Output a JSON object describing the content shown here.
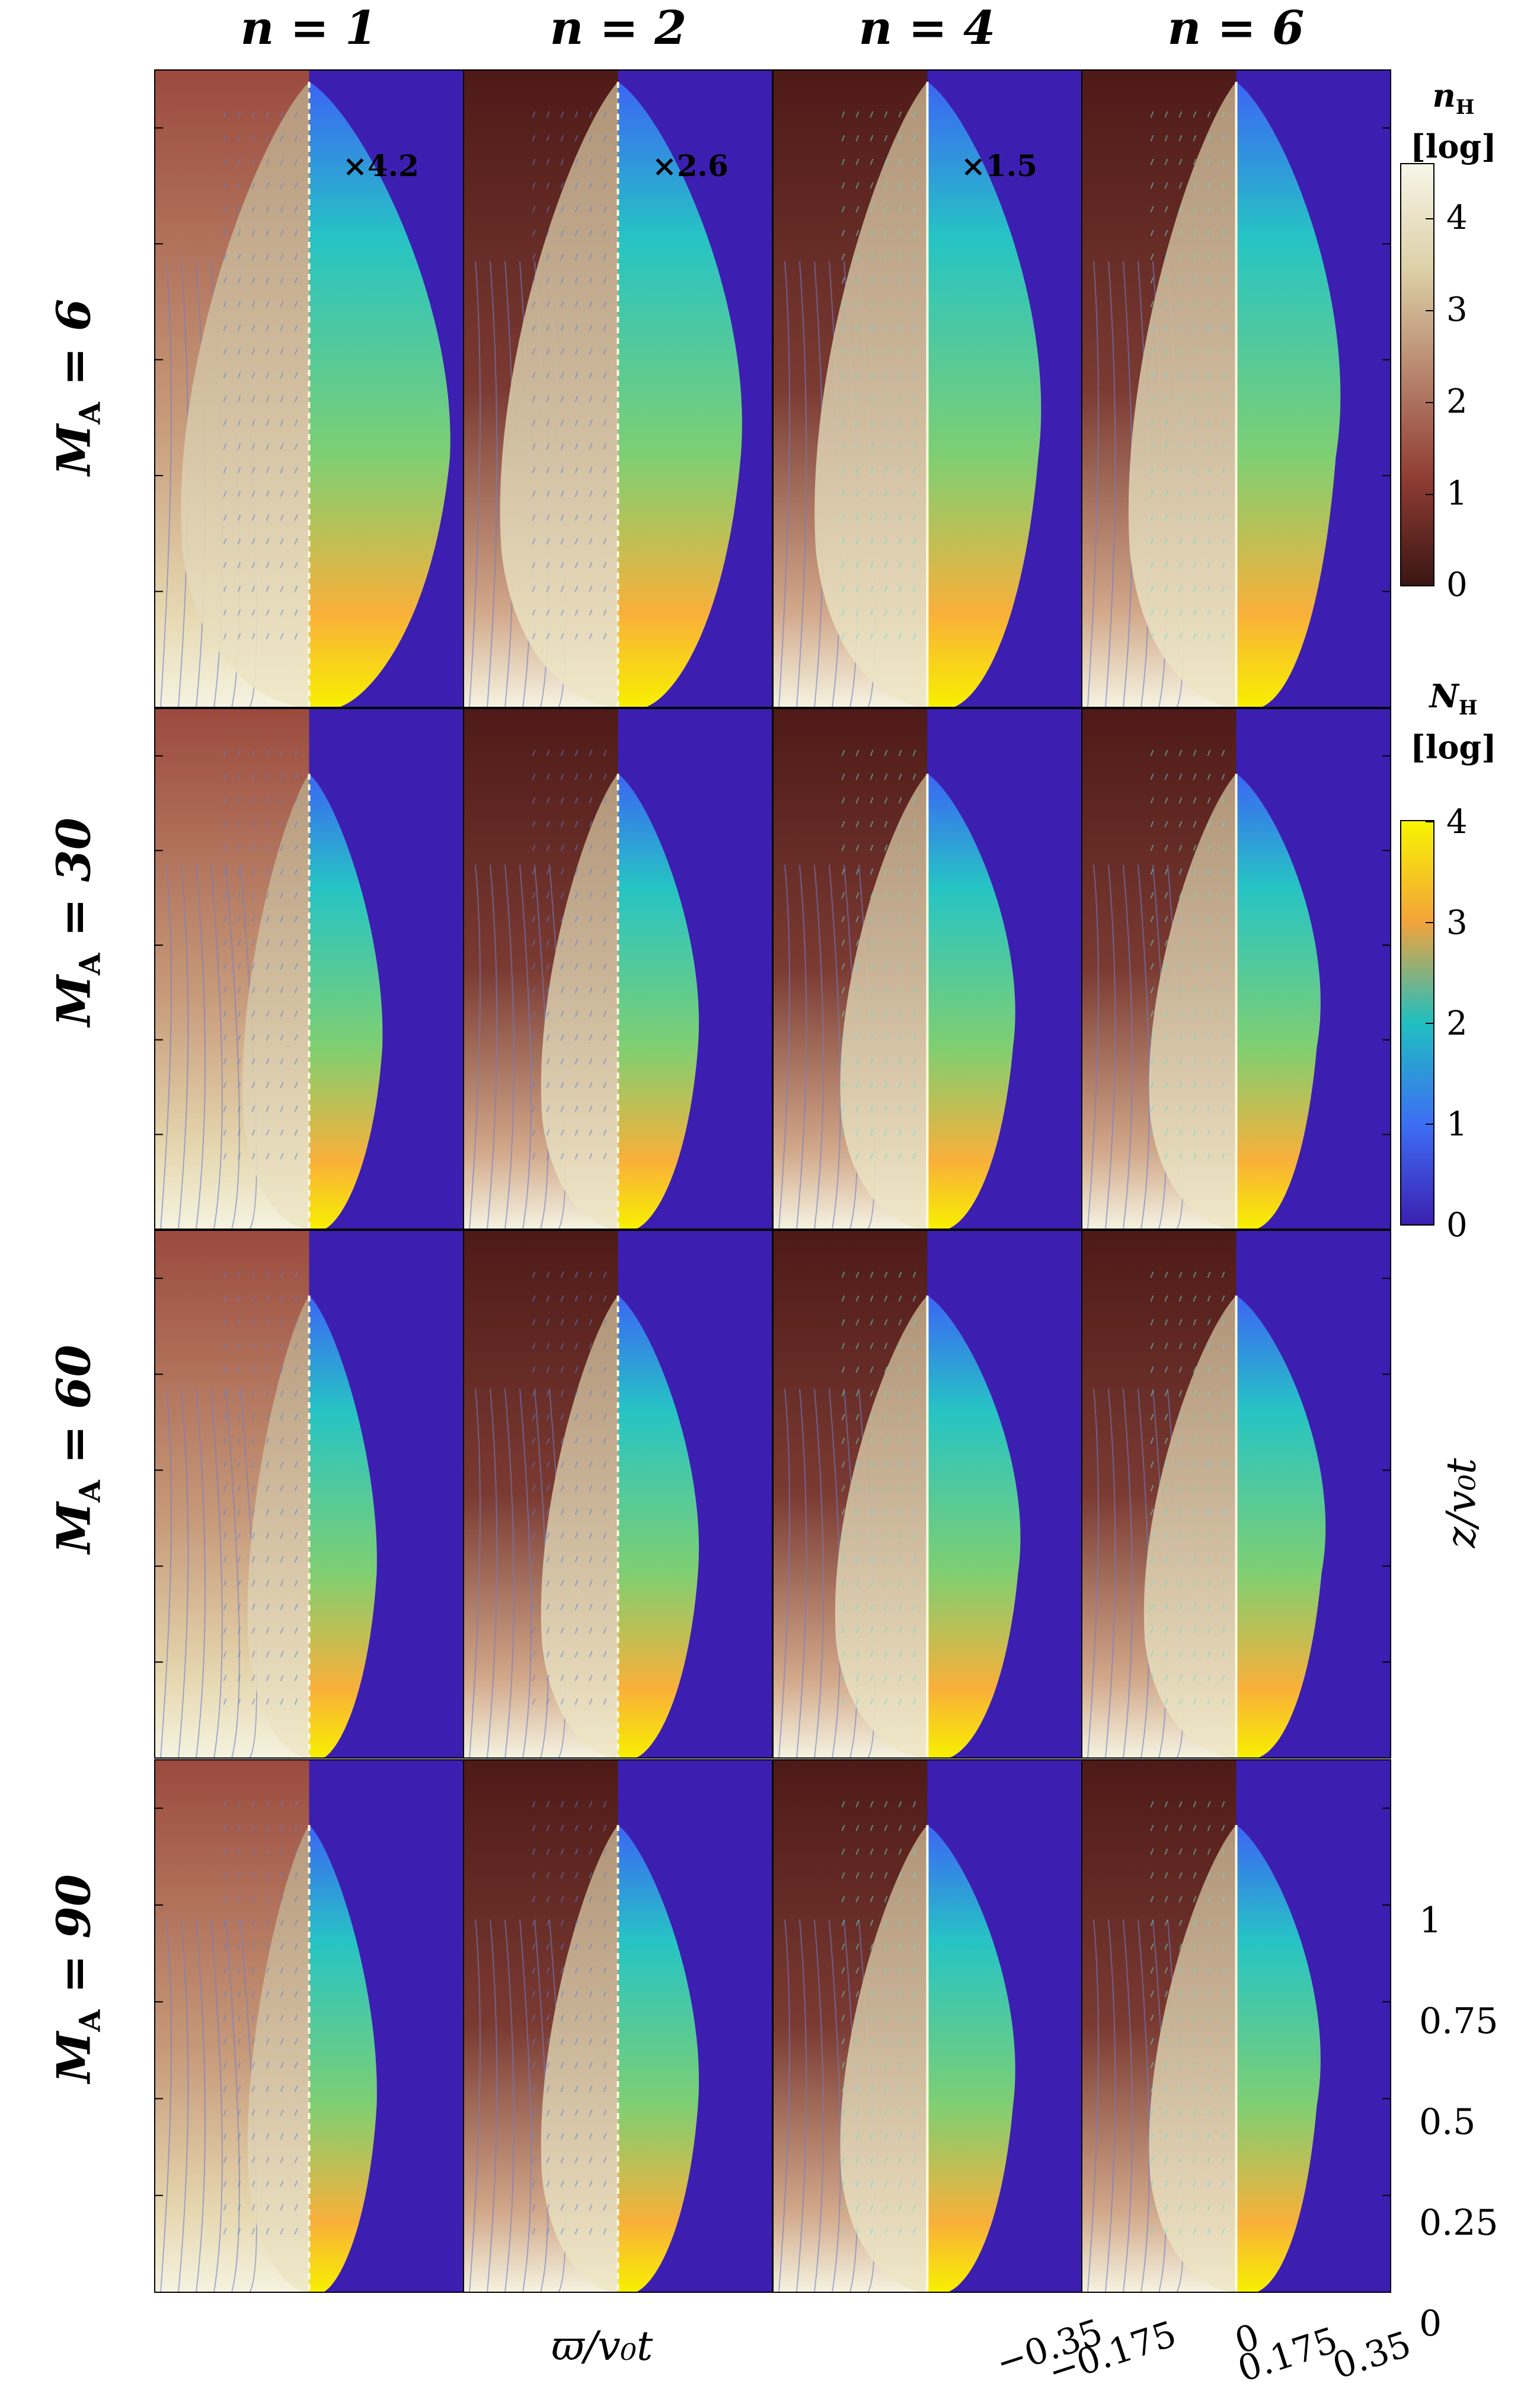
{
  "figure": {
    "columns": [
      {
        "label": "n = 1",
        "multiplier": "×4.2"
      },
      {
        "label": "n = 2",
        "multiplier": "×2.6"
      },
      {
        "label": "n = 4",
        "multiplier": "×1.5"
      },
      {
        "label": "n = 6",
        "multiplier": ""
      }
    ],
    "rows": [
      {
        "label": "M",
        "sub": "A",
        "value": " = 6"
      },
      {
        "label": "M",
        "sub": "A",
        "value": " = 30"
      },
      {
        "label": "M",
        "sub": "A",
        "value": " = 60"
      },
      {
        "label": "M",
        "sub": "A",
        "value": " = 90"
      }
    ],
    "colorbar_top": {
      "symbol": "n",
      "sub": "H",
      "unit": "[log]",
      "ticks": [
        "0",
        "1",
        "2",
        "3",
        "4"
      ],
      "range": [
        0,
        4.5
      ]
    },
    "colorbar_bottom": {
      "symbol": "N",
      "sub": "H",
      "unit": "[log]",
      "ticks": [
        "0",
        "1",
        "2",
        "3",
        "4"
      ],
      "range": [
        0,
        4
      ]
    },
    "x_axis": {
      "label": "ϖ/v₀t",
      "ticks": [
        "−0.35",
        "−0.175",
        "0",
        "0.175",
        "0.35"
      ]
    },
    "y_axis": {
      "label": "z/v₀t",
      "ticks": [
        "0",
        "0.25",
        "0.5",
        "0.75",
        "1"
      ]
    }
  },
  "chart_data": {
    "type": "heatmap",
    "title": "",
    "xlabel": "ϖ/v₀t",
    "ylabel": "z/v₀t",
    "xlim": [
      -0.35,
      0.35
    ],
    "ylim": [
      0,
      1.2
    ],
    "x_ticks": [
      -0.35,
      -0.175,
      0,
      0.175,
      0.35
    ],
    "y_ticks": [
      0,
      0.25,
      0.5,
      0.75,
      1
    ],
    "colorbars": [
      {
        "name": "n_H [log]",
        "range": [
          0,
          4.5
        ],
        "colormap": "dark-red to cream"
      },
      {
        "name": "N_H [log]",
        "range": [
          0,
          4
        ],
        "colormap": "blue-cyan-yellow (parula)"
      }
    ],
    "panels": [
      {
        "n": 1,
        "M_A": 6,
        "multiplier": 4.2
      },
      {
        "n": 2,
        "M_A": 6,
        "multiplier": 2.6
      },
      {
        "n": 4,
        "M_A": 6,
        "multiplier": 1.5
      },
      {
        "n": 6,
        "M_A": 6
      },
      {
        "n": 1,
        "M_A": 30
      },
      {
        "n": 2,
        "M_A": 30
      },
      {
        "n": 4,
        "M_A": 30
      },
      {
        "n": 6,
        "M_A": 30
      },
      {
        "n": 1,
        "M_A": 60
      },
      {
        "n": 2,
        "M_A": 60
      },
      {
        "n": 4,
        "M_A": 60
      },
      {
        "n": 6,
        "M_A": 60
      },
      {
        "n": 1,
        "M_A": 90
      },
      {
        "n": 2,
        "M_A": 90
      },
      {
        "n": 4,
        "M_A": 90
      },
      {
        "n": 6,
        "M_A": 90
      }
    ]
  },
  "colors": {
    "background_blue": "#3c1fb0",
    "dark_red": "#4e1a17",
    "red_brown": "#9b4a3d",
    "cream": "#f5f3e0",
    "yellow": "#f8f000",
    "orange": "#f9b03a",
    "cyan": "#26c4c4",
    "blue": "#3b66f5"
  }
}
